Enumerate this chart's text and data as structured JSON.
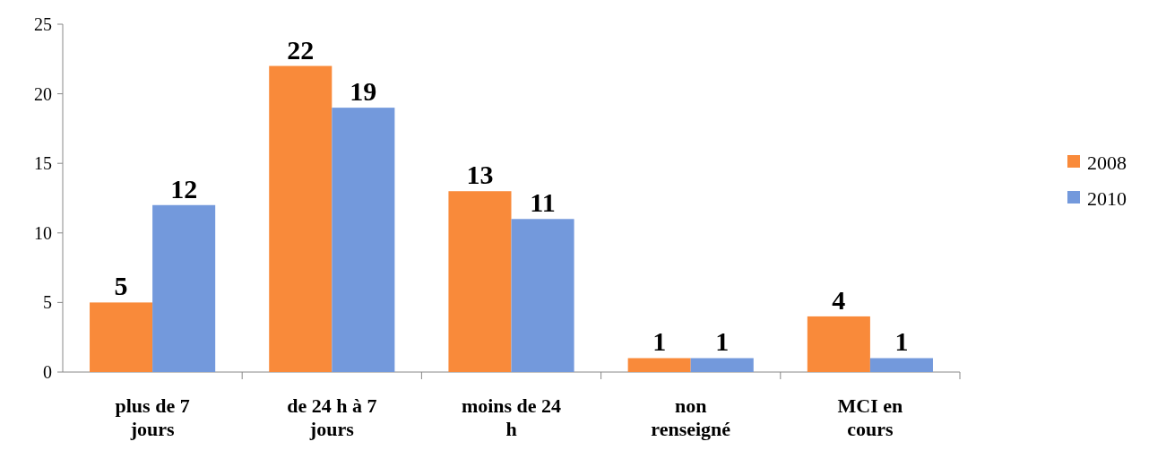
{
  "chart_data": {
    "type": "bar",
    "categories": [
      "plus de 7 jours",
      "de 24 h à 7 jours",
      "moins de 24 h",
      "non renseigné",
      "MCI en cours"
    ],
    "series": [
      {
        "name": "2008",
        "color": "#f98a3a",
        "values": [
          5,
          22,
          13,
          1,
          4
        ]
      },
      {
        "name": "2010",
        "color": "#7399dc",
        "values": [
          12,
          19,
          11,
          1,
          1
        ]
      }
    ],
    "ylim": [
      0,
      25
    ],
    "yticks": [
      0,
      5,
      10,
      15,
      20,
      25
    ],
    "data_labels": true,
    "legend": "right"
  }
}
